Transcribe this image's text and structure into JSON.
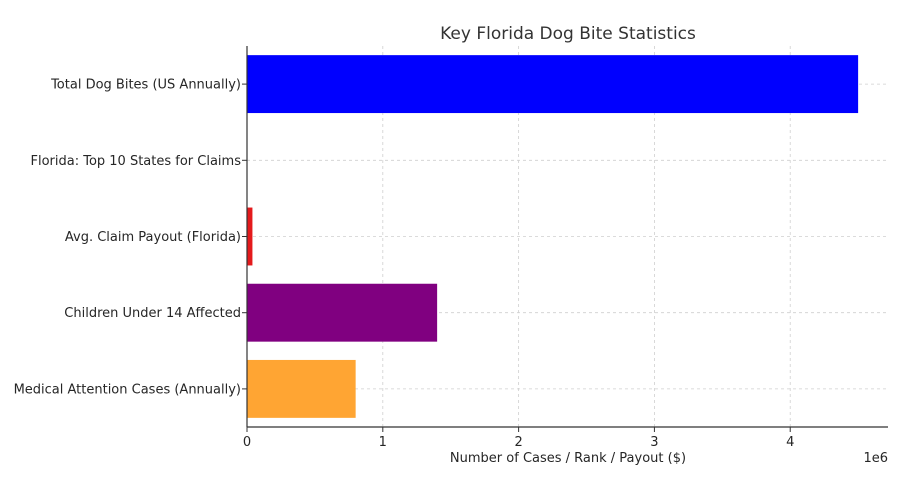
{
  "chart_data": {
    "type": "bar",
    "orientation": "horizontal",
    "title": "Key Florida Dog Bite Statistics",
    "xlabel": "Number of Cases / Rank / Payout ($)",
    "ylabel": "",
    "offset_text": "1e6",
    "xlim": [
      0,
      4.72
    ],
    "xticks": [
      0,
      1,
      2,
      3,
      4
    ],
    "xtick_labels": [
      "0",
      "1",
      "2",
      "3",
      "4"
    ],
    "grid": true,
    "categories": [
      "Total Dog Bites (US Annually)",
      "Florida: Top 10 States for Claims",
      "Avg. Claim Payout (Florida)",
      "Children Under 14 Affected",
      "Medical Attention Cases (Annually)"
    ],
    "values": [
      4500000,
      10,
      40000,
      1400000,
      800000
    ],
    "colors": [
      "#0000ff",
      "#008000",
      "#e41a1c",
      "#800080",
      "#ffa533"
    ]
  }
}
